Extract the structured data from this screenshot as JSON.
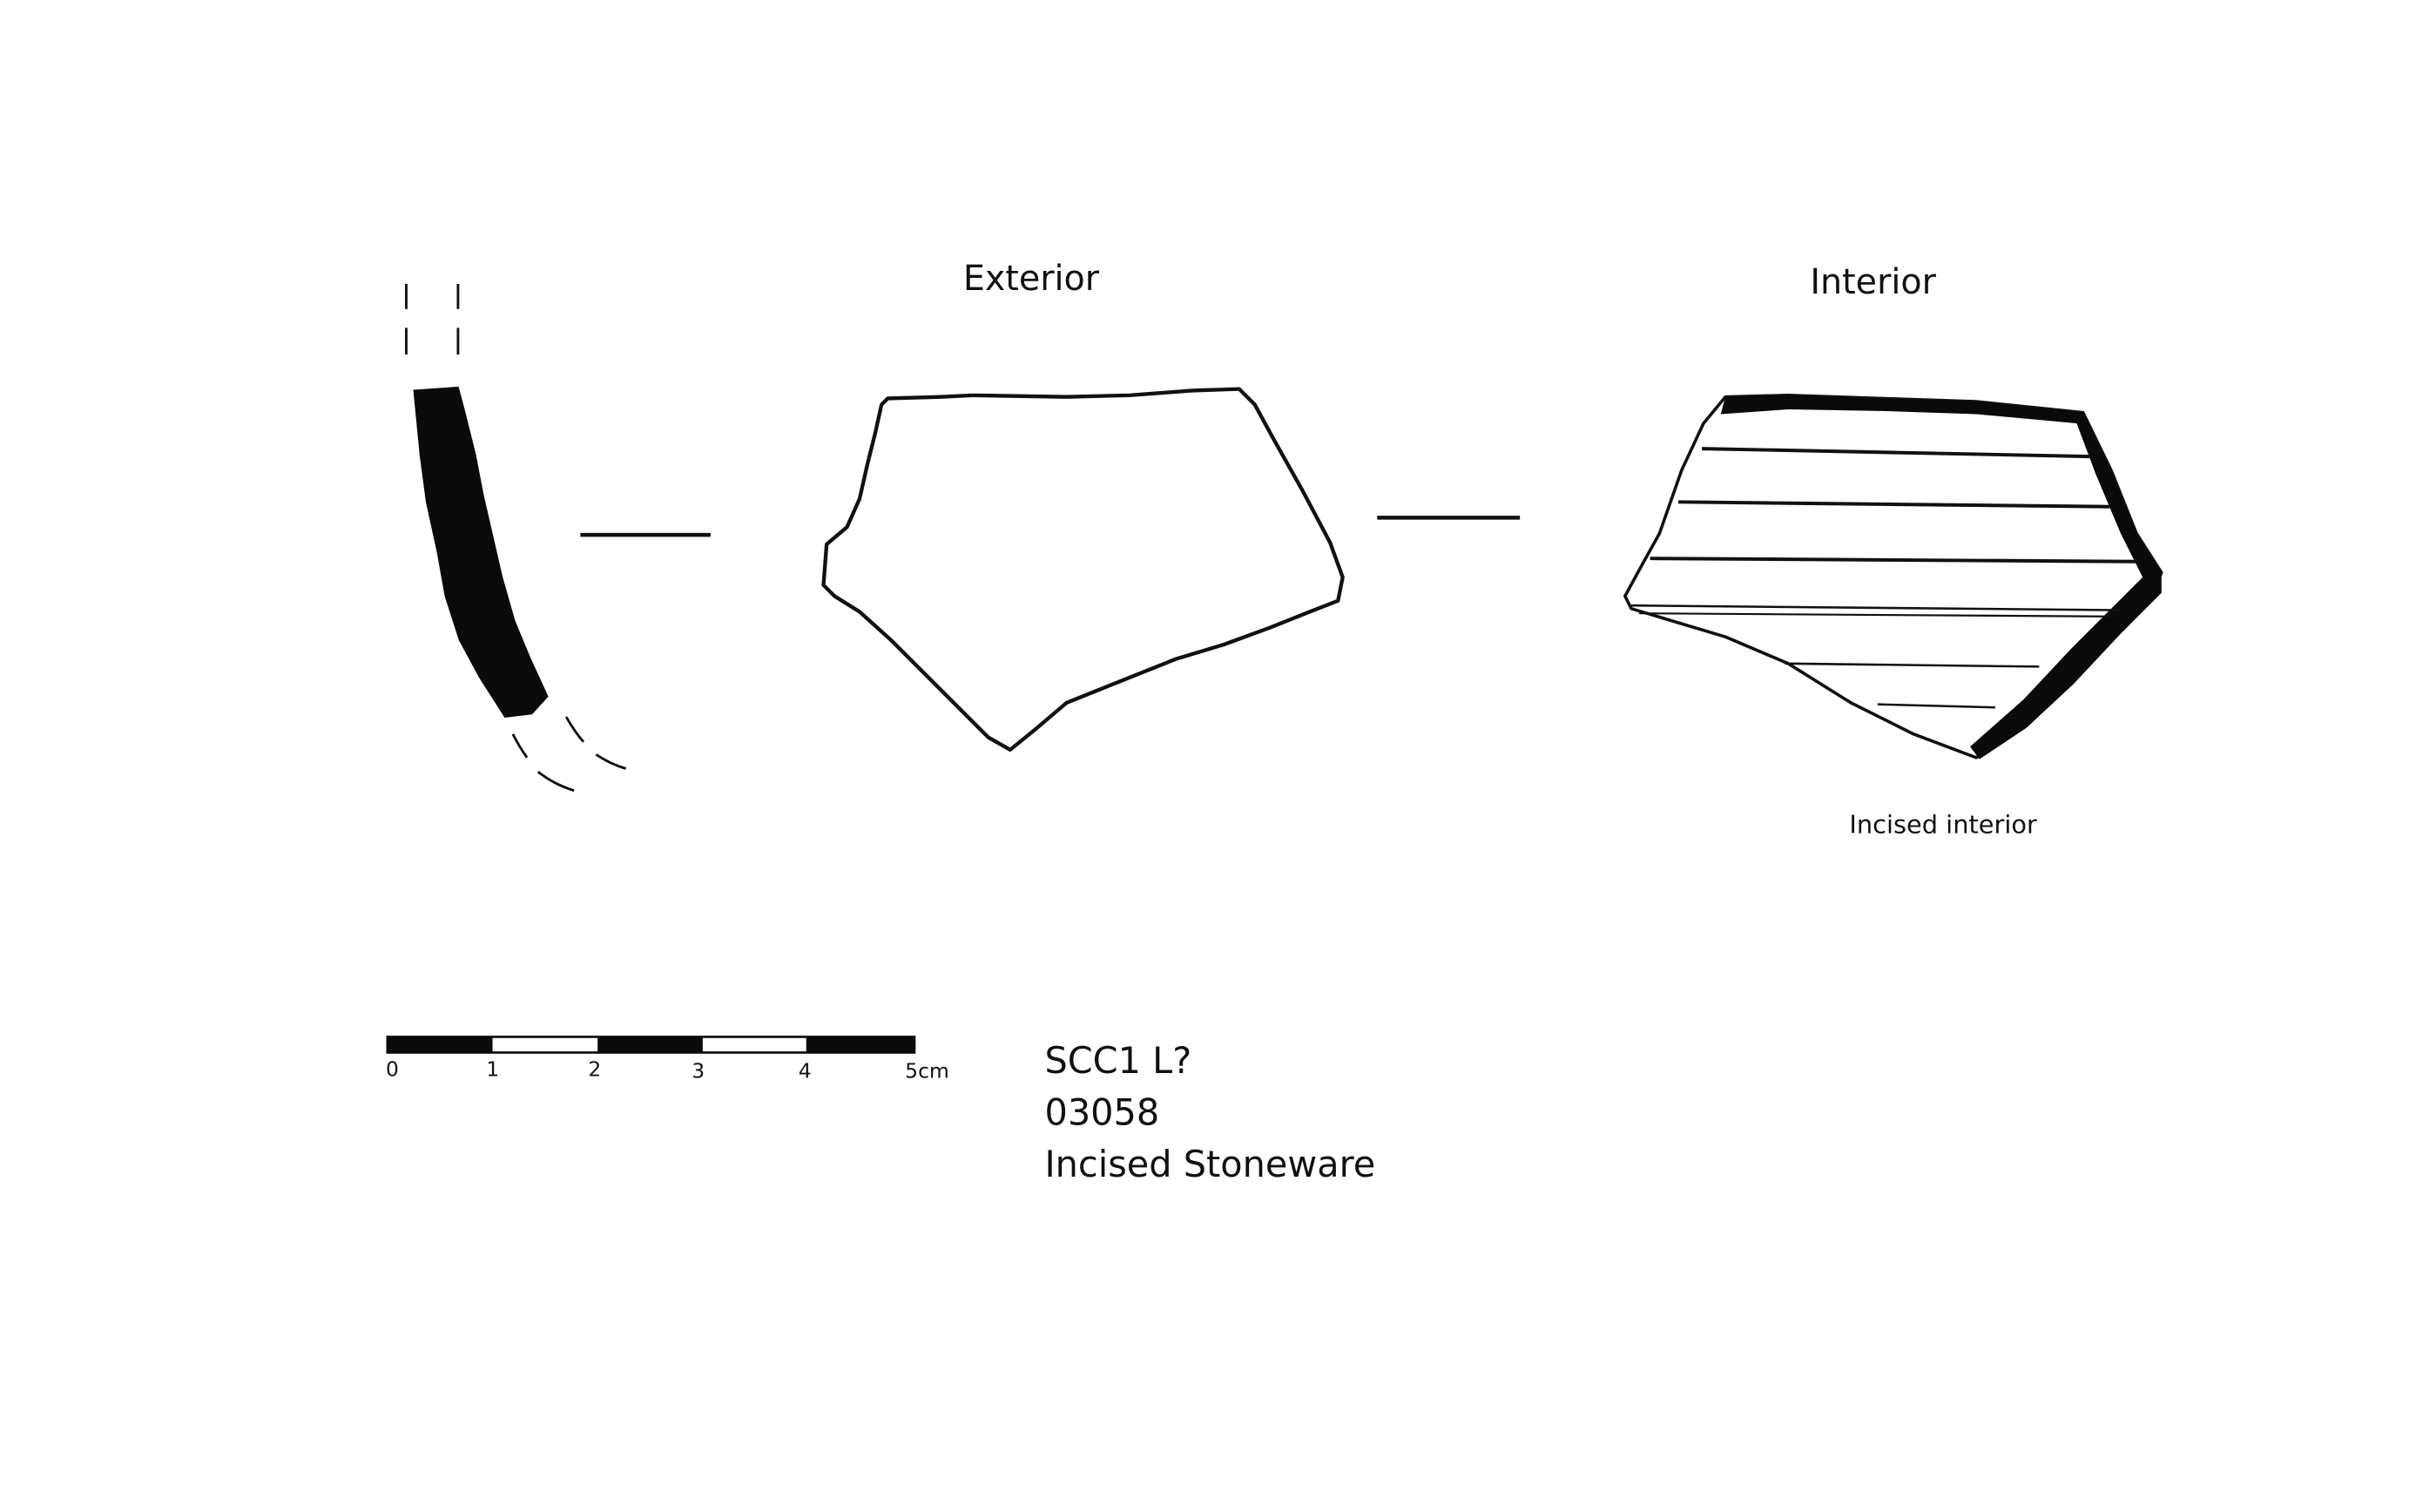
{
  "views": {
    "exterior_label": "Exterior",
    "interior_label": "Interior"
  },
  "interior_note": "Incised interior",
  "scale_bar": {
    "ticks": [
      "0",
      "1",
      "2",
      "3",
      "4",
      "5cm"
    ]
  },
  "specimen": {
    "site": "SCC1 L?",
    "catalog_number": "03058",
    "ware_type": "Incised Stoneware"
  }
}
